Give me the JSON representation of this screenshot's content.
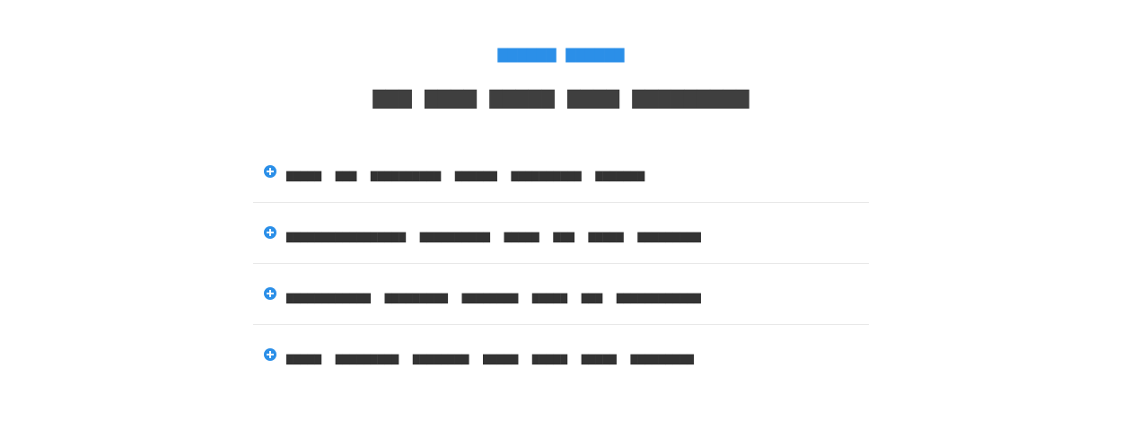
{
  "header": {
    "eyebrow": "▆▆▆▆▆▆ ▆▆▆▆▆▆",
    "title": "▆▆▆ ▆▆▆▆ ▆▆▆▆▆ ▆▆▆▆ ▆▆▆▆▆▆▆▆▆"
  },
  "faq": {
    "items": [
      {
        "question": "▆▆▆▆▆  ▆▆▆  ▆▆▆▆▆▆▆▆▆▆  ▆▆▆▆▆▆  ▆▆▆▆▆▆▆▆▆▆  ▆▆▆▆▆▆▆"
      },
      {
        "question": "▆▆▆▆▆▆▆▆▆▆▆▆▆▆▆▆▆  ▆▆▆▆▆▆▆▆▆▆  ▆▆▆▆▆  ▆▆▆  ▆▆▆▆▆  ▆▆▆▆▆▆▆▆▆"
      },
      {
        "question": "▆▆▆▆▆▆▆▆▆▆▆▆  ▆▆▆▆▆▆▆▆▆  ▆▆▆▆▆▆▆▆  ▆▆▆▆▆  ▆▆▆  ▆▆▆▆▆▆▆▆▆▆▆▆"
      },
      {
        "question": "▆▆▆▆▆  ▆▆▆▆▆▆▆▆▆  ▆▆▆▆▆▆▆▆  ▆▆▆▆▆  ▆▆▆▆▆  ▆▆▆▆▆  ▆▆▆▆▆▆▆▆▆"
      }
    ]
  },
  "colors": {
    "accent": "#2b8fe8",
    "text": "#333333",
    "divider": "#e8e8e8"
  },
  "icons": {
    "toggle": "plus-circle-icon"
  }
}
